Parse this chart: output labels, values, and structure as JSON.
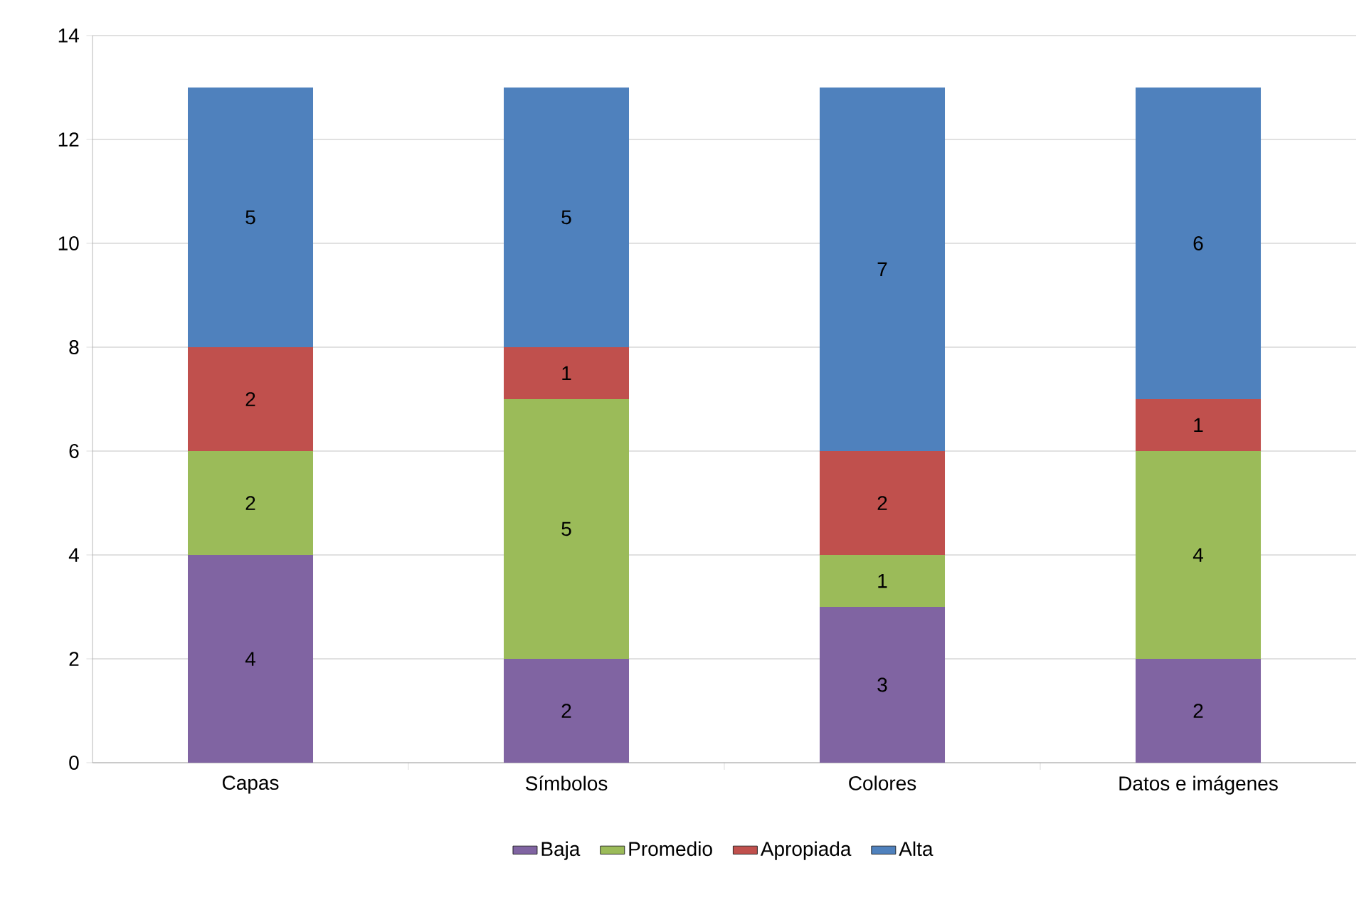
{
  "chart_data": {
    "type": "bar",
    "stacked": true,
    "categories": [
      "Capas",
      "Símbolos",
      "Colores",
      "Datos e imágenes"
    ],
    "series": [
      {
        "name": "Baja",
        "color": "#8064a2",
        "values": [
          4,
          2,
          3,
          2
        ]
      },
      {
        "name": "Promedio",
        "color": "#9bbb59",
        "values": [
          2,
          5,
          1,
          4
        ]
      },
      {
        "name": "Apropiada",
        "color": "#c0504d",
        "values": [
          2,
          1,
          2,
          1
        ]
      },
      {
        "name": "Alta",
        "color": "#4f81bd",
        "values": [
          5,
          5,
          7,
          6
        ]
      }
    ],
    "ylim": [
      0,
      14
    ],
    "yticks": [
      0,
      2,
      4,
      6,
      8,
      10,
      12,
      14
    ],
    "grid": "y",
    "legend": "bottom",
    "data_labels": true
  }
}
